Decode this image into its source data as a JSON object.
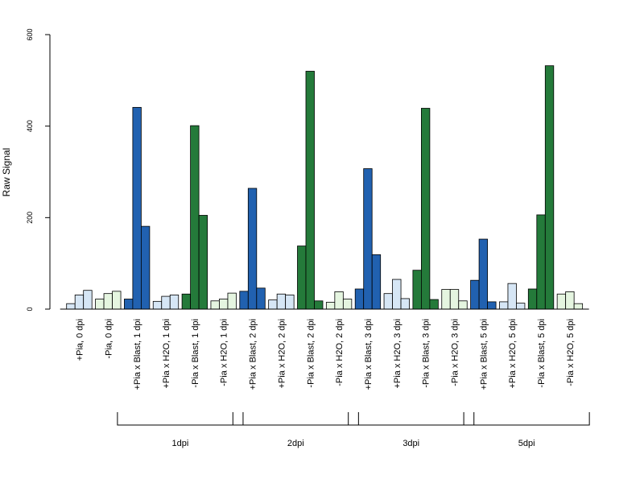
{
  "chart_data": {
    "type": "bar",
    "ylabel": "Raw Signal",
    "ylim": [
      0,
      600
    ],
    "yticks": [
      0,
      200,
      400,
      600
    ],
    "grid": false,
    "legend": "none",
    "categories": [
      "+Pia, 0 dpi",
      "-Pia, 0 dpi",
      "+Pia x Blast, 1 dpi",
      "+Pia x H2O, 1 dpi",
      "-Pia x Blast, 1 dpi",
      "-Pia x H2O, 1 dpi",
      "+Pia x Blast, 2 dpi",
      "+Pia x H2O, 2 dpi",
      "-Pia x Blast, 2 dpi",
      "-Pia x H2O, 2 dpi",
      "+Pia x Blast, 3 dpi",
      "+Pia x H2O, 3 dpi",
      "-Pia x Blast, 3 dpi",
      "-Pia x H2O, 3 dpi",
      "+Pia x Blast, 5 dpi",
      "+Pia x H2O, 5 dpi",
      "-Pia x Blast, 5 dpi",
      "-Pia x H2O, 5 dpi"
    ],
    "bars_per_group": 3,
    "values": [
      [
        12,
        31,
        41
      ],
      [
        22,
        34,
        39
      ],
      [
        22,
        441,
        181
      ],
      [
        17,
        28,
        31
      ],
      [
        33,
        401,
        205
      ],
      [
        18,
        22,
        35
      ],
      [
        39,
        264,
        46
      ],
      [
        20,
        33,
        31
      ],
      [
        138,
        520,
        18
      ],
      [
        15,
        38,
        22
      ],
      [
        44,
        307,
        119
      ],
      [
        34,
        65,
        23
      ],
      [
        85,
        439,
        21
      ],
      [
        43,
        43,
        18
      ],
      [
        63,
        153,
        16
      ],
      [
        16,
        56,
        13
      ],
      [
        44,
        206,
        532
      ],
      [
        33,
        38,
        12
      ]
    ],
    "bar_colors": [
      "#d6e6f5",
      "#e5f5e0",
      "#2161b0",
      "#d6e6f5",
      "#247a3a",
      "#e5f5e0",
      "#2161b0",
      "#d6e6f5",
      "#247a3a",
      "#e5f5e0",
      "#2161b0",
      "#d6e6f5",
      "#247a3a",
      "#e5f5e0",
      "#2161b0",
      "#d6e6f5",
      "#247a3a",
      "#e5f5e0"
    ],
    "timepoint_groups": [
      {
        "label": "1dpi",
        "categories": [
          2,
          5
        ]
      },
      {
        "label": "2dpi",
        "categories": [
          6,
          9
        ]
      },
      {
        "label": "3dpi",
        "categories": [
          10,
          13
        ]
      },
      {
        "label": "5dpi",
        "categories": [
          14,
          17
        ]
      }
    ]
  }
}
